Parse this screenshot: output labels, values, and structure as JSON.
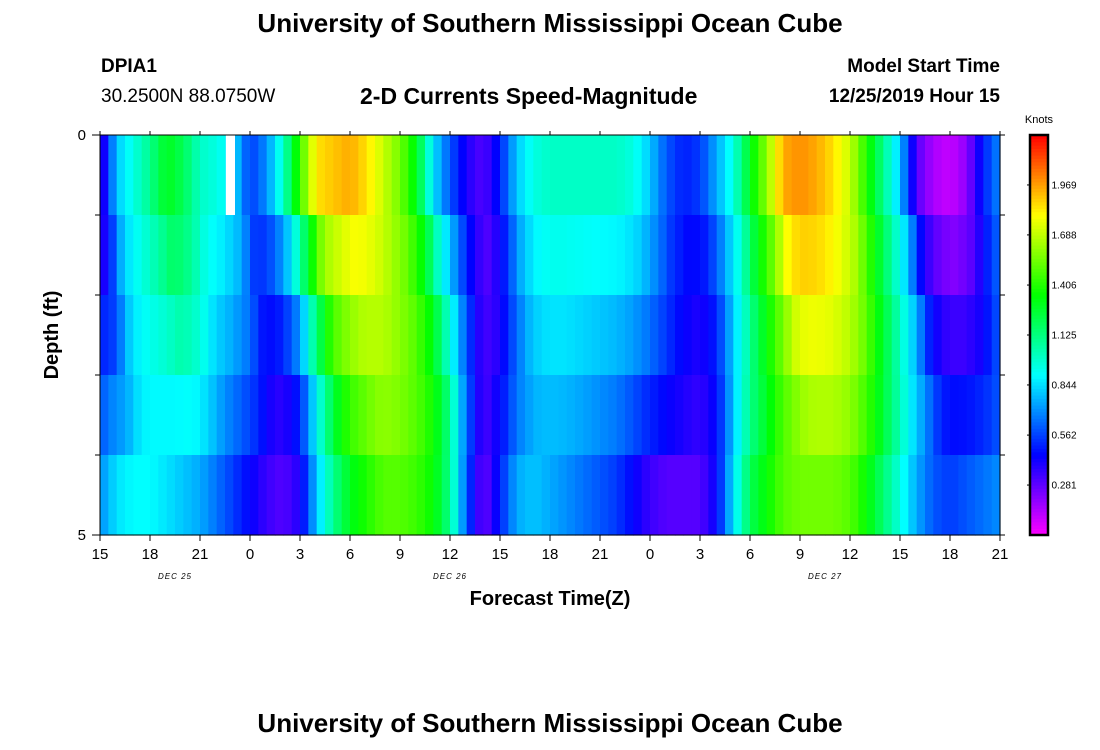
{
  "header": {
    "title": "University of Southern Mississippi Ocean Cube",
    "station": "DPIA1",
    "coordinates": "30.2500N 88.0750W",
    "subtitle": "2-D Currents Speed-Magnitude",
    "model_start_label": "Model Start Time",
    "model_start_value": "12/25/2019 Hour 15"
  },
  "footer": {
    "title": "University of Southern Mississippi Ocean Cube"
  },
  "chart_data": {
    "type": "heatmap",
    "xlabel": "Forecast Time(Z)",
    "ylabel": "Depth (ft)",
    "x_range_hours": [
      0,
      54
    ],
    "x_start": "12/25/2019 15Z",
    "x_step_hours": 1,
    "x_tick_labels": [
      "15",
      "18",
      "21",
      "0",
      "3",
      "6",
      "9",
      "12",
      "15",
      "18",
      "21",
      "0",
      "3",
      "6",
      "9",
      "12",
      "15",
      "18",
      "21"
    ],
    "x_tick_hours": [
      0,
      3,
      6,
      9,
      12,
      15,
      18,
      21,
      24,
      27,
      30,
      33,
      36,
      39,
      42,
      45,
      48,
      51,
      54
    ],
    "date_labels": [
      {
        "label": "DEC 25",
        "hour": 4.5
      },
      {
        "label": "DEC 26",
        "hour": 21
      },
      {
        "label": "DEC 27",
        "hour": 43.5
      }
    ],
    "y_range": [
      0,
      5
    ],
    "y_tick_labels": [
      {
        "value": 0,
        "label": "0"
      },
      {
        "value": 5,
        "label": "5"
      }
    ],
    "y_minor_ticks": [
      1,
      2,
      3,
      4
    ],
    "depth_layers": [
      0.5,
      1.5,
      2.5,
      3.5,
      4.5
    ],
    "colorbar": {
      "title": "Knots",
      "min": 0,
      "max": 2.25,
      "tick_labels": [
        "1.969",
        "1.688",
        "1.406",
        "1.125",
        "0.844",
        "0.562",
        "0.281"
      ],
      "tick_values": [
        1.969,
        1.688,
        1.406,
        1.125,
        0.844,
        0.562,
        0.281
      ]
    },
    "speed_at_top_knots": [
      0.3,
      0.8,
      0.95,
      1.1,
      1.3,
      1.2,
      1.0,
      0.95,
      0.85,
      0.55,
      0.7,
      1.0,
      1.45,
      1.85,
      1.9,
      1.95,
      1.85,
      1.7,
      1.55,
      1.3,
      0.85,
      0.6,
      0.4,
      0.3,
      0.5,
      0.8,
      0.95,
      1.0,
      1.0,
      1.0,
      1.0,
      1.0,
      0.95,
      0.8,
      0.6,
      0.5,
      0.55,
      0.75,
      0.95,
      1.3,
      1.6,
      1.95,
      2.0,
      1.95,
      1.85,
      1.7,
      1.4,
      1.1,
      0.8,
      0.3,
      0.15,
      0.1,
      0.2,
      0.5,
      0.7,
      0.8
    ],
    "speed_at_bottom_knots": [
      0.7,
      0.85,
      0.9,
      0.9,
      0.85,
      0.8,
      0.75,
      0.65,
      0.55,
      0.45,
      0.35,
      0.3,
      0.4,
      0.8,
      1.1,
      1.3,
      1.4,
      1.5,
      1.5,
      1.45,
      1.35,
      1.1,
      0.6,
      0.25,
      0.5,
      0.75,
      0.8,
      0.75,
      0.7,
      0.65,
      0.6,
      0.55,
      0.45,
      0.35,
      0.3,
      0.3,
      0.3,
      0.45,
      0.85,
      1.2,
      1.35,
      1.5,
      1.55,
      1.55,
      1.55,
      1.5,
      1.35,
      1.15,
      0.95,
      0.75,
      0.6,
      0.55,
      0.6,
      0.65,
      0.7,
      0.7
    ],
    "depth_profile_shift_hours": [
      0,
      0.4,
      0.9,
      1.5,
      2.0
    ],
    "missing_value_cell": {
      "hour": 8,
      "depth_layer": 0
    }
  }
}
